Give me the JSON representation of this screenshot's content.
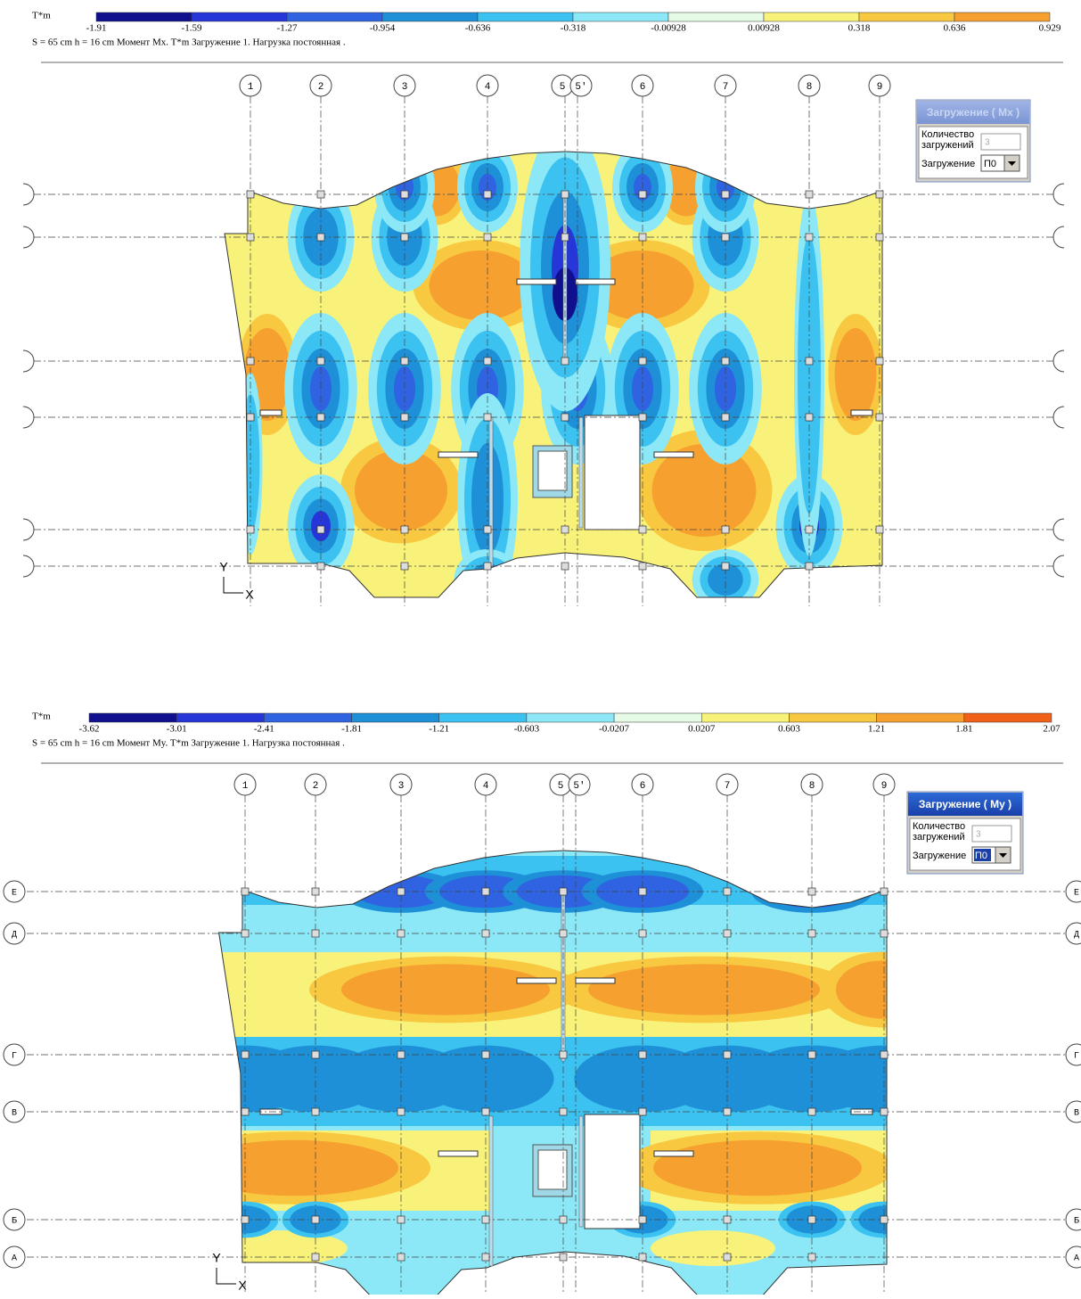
{
  "panels": [
    {
      "unit": "T*m",
      "legend": {
        "labels": [
          "-1.91",
          "-1.59",
          "-1.27",
          "-0.954",
          "-0.636",
          "-0.318",
          "-0.00928",
          "0.00928",
          "0.318",
          "0.636",
          "0.929"
        ],
        "colors": [
          "#10108e",
          "#2636d8",
          "#2f63e2",
          "#1e90d8",
          "#3cc2f0",
          "#8ce8f6",
          "#e6fbe6",
          "#f8f27a",
          "#f8c840",
          "#f6a030"
        ]
      },
      "caption": "S = 65 cm  h = 16 cm  Момент Mx. T*m  Загружение 1.   Нагрузка постоянная .",
      "columns": [
        "1",
        "2",
        "3",
        "4",
        "5",
        "5'",
        "6",
        "7",
        "8",
        "9"
      ],
      "axis": {
        "y": "Y",
        "x": "X"
      },
      "dialog": {
        "title": "Загружение ( Mx )",
        "count_label": [
          "Количество",
          "загружений"
        ],
        "count": "3",
        "load_label": "Загружение",
        "load": "П0"
      }
    },
    {
      "unit": "T*m",
      "legend": {
        "labels": [
          "-3.62",
          "-3.01",
          "-2.41",
          "-1.81",
          "-1.21",
          "-0.603",
          "-0.0207",
          "0.0207",
          "0.603",
          "1.21",
          "1.81",
          "2.07"
        ],
        "colors": [
          "#10108e",
          "#2636d8",
          "#2f63e2",
          "#1e90d8",
          "#3cc2f0",
          "#8ce8f6",
          "#e6fbe6",
          "#f8f27a",
          "#f8c840",
          "#f6a030",
          "#f06018"
        ]
      },
      "caption": "S = 65 cm  h = 16 cm  Момент My. T*m  Загружение 1.   Нагрузка постоянная .",
      "columns": [
        "1",
        "2",
        "3",
        "4",
        "5",
        "5'",
        "6",
        "7",
        "8",
        "9"
      ],
      "rows": [
        "Е",
        "Д",
        "Г",
        "В",
        "Б",
        "А"
      ],
      "axis": {
        "y": "Y",
        "x": "X"
      },
      "dialog": {
        "title": "Загружение ( My )",
        "count_label": [
          "Количество",
          "загружений"
        ],
        "count": "3",
        "load_label": "Загружение",
        "load": "П0"
      }
    }
  ]
}
